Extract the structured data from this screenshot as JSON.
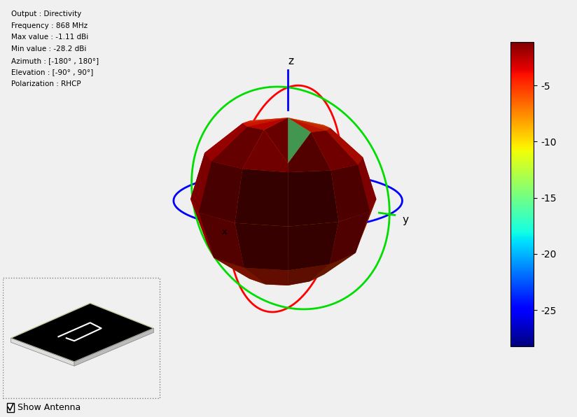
{
  "chart_data": {
    "type": "pattern3d",
    "info_lines": [
      "Output : Directivity",
      "Frequency : 868 MHz",
      "Max value : -1.11 dBi",
      "Min value : -28.2 dBi",
      "Azimuth : [-180° , 180°]",
      "Elevation : [-90° , 90°]",
      "Polarization : RHCP"
    ],
    "azimuth": [
      -180,
      -150,
      -120,
      -90,
      -60,
      -30,
      0,
      30,
      60,
      90,
      120,
      150,
      180
    ],
    "elevation": [
      -90,
      -60,
      -30,
      0,
      30,
      60,
      90
    ],
    "directivity": [
      [
        -7,
        -7,
        -7,
        -7,
        -7,
        -7,
        -7,
        -7,
        -7,
        -7,
        -7,
        -7,
        -7
      ],
      [
        -7.5,
        -7.3,
        -6.8,
        -6,
        -5.3,
        -4.7,
        -4.5,
        -4.7,
        -5.3,
        -6,
        -6.8,
        -7.3,
        -7.5
      ],
      [
        -7,
        -6.7,
        -5.8,
        -4.5,
        -3.3,
        -2.3,
        -2,
        -2.3,
        -3.3,
        -4.5,
        -5.8,
        -6.7,
        -7
      ],
      [
        -5.9,
        -5.6,
        -4.7,
        -3.5,
        -2.3,
        -1.4,
        -1.11,
        -1.4,
        -2.3,
        -3.5,
        -4.7,
        -5.6,
        -5.9
      ],
      [
        -6.5,
        -6.2,
        -5.3,
        -4,
        -2.8,
        -1.8,
        -1.5,
        -1.8,
        -2.8,
        -4,
        -5.3,
        -6.2,
        -6.5
      ],
      [
        -6.5,
        -6.3,
        -5.8,
        -5,
        -4.3,
        -3.7,
        -3.5,
        -15,
        -4.3,
        -5,
        -5.8,
        -6.3,
        -6.5
      ],
      [
        -6,
        -6,
        -6,
        -6,
        -6,
        -6,
        -6,
        -6,
        -6,
        -6,
        -6,
        -6,
        -6
      ]
    ],
    "colorbar": {
      "range": [
        -28.2,
        -1.11
      ],
      "ticks": [
        -25,
        -20,
        -15,
        -10,
        -5
      ]
    },
    "axis_labels": {
      "x": "x",
      "y": "y",
      "z": "z"
    },
    "checkbox": "Show Antenna"
  }
}
